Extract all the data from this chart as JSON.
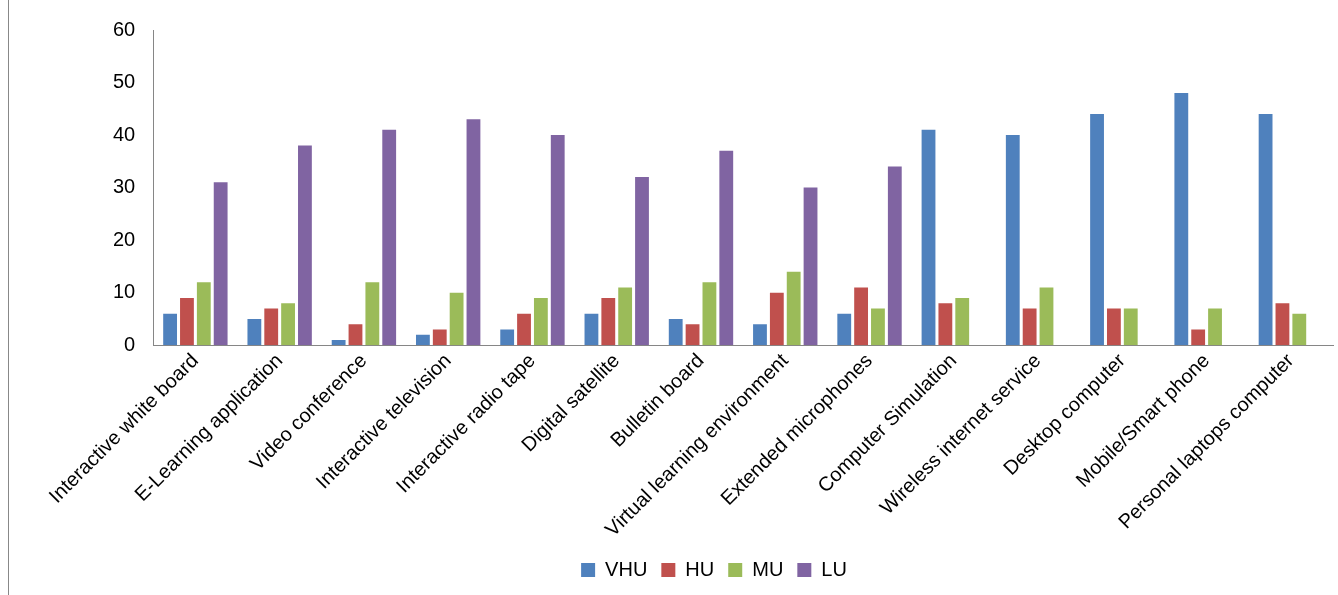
{
  "chart_data": {
    "type": "bar",
    "categories": [
      "Interactive white board",
      "E-Learning application",
      "Video conference",
      "Interactive television",
      "Interactive radio tape",
      "Digital satellite",
      "Bulletin board",
      "Virtual learning environment",
      "Extended microphones",
      "Computer Simulation",
      "Wireless internet service",
      "Desktop computer",
      "Mobile/Smart phone",
      "Personal laptops computer"
    ],
    "series": [
      {
        "name": "VHU",
        "color": "#4f81bd",
        "values": [
          6,
          5,
          1,
          2,
          3,
          6,
          5,
          4,
          6,
          41,
          40,
          44,
          48,
          44
        ]
      },
      {
        "name": "HU",
        "color": "#c0504d",
        "values": [
          9,
          7,
          4,
          3,
          6,
          9,
          4,
          10,
          11,
          8,
          7,
          7,
          3,
          8
        ]
      },
      {
        "name": "MU",
        "color": "#9bbb59",
        "values": [
          12,
          8,
          12,
          10,
          9,
          11,
          12,
          14,
          7,
          9,
          11,
          7,
          7,
          6
        ]
      },
      {
        "name": "LU",
        "color": "#8064a2",
        "values": [
          31,
          38,
          41,
          43,
          40,
          32,
          37,
          30,
          34,
          null,
          null,
          null,
          null,
          null
        ]
      }
    ],
    "ylim": [
      0,
      60
    ],
    "yticks": [
      0,
      10,
      20,
      30,
      40,
      50,
      60
    ],
    "grid": false,
    "legend": "bottom"
  }
}
